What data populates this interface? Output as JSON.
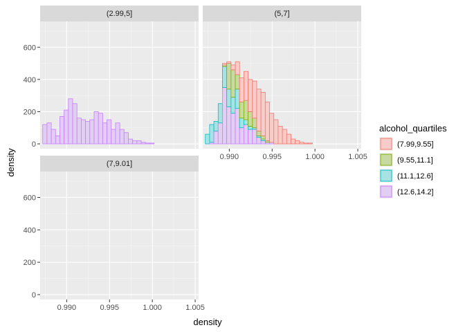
{
  "chart_data": {
    "type": "bar",
    "subtype": "stacked-histogram-faceted",
    "xlabel": "density",
    "ylabel": "density",
    "xlim": [
      0.9869,
      1.0054
    ],
    "ylim": [
      -30,
      760
    ],
    "x_ticks": [
      0.99,
      0.995,
      1.0,
      1.005
    ],
    "x_tick_labels": [
      "0.990",
      "0.995",
      "1.000",
      "1.005"
    ],
    "y_ticks": [
      0,
      200,
      400,
      600
    ],
    "y_tick_labels": [
      "0",
      "200",
      "400",
      "600"
    ],
    "grid": true,
    "legend": {
      "title": "alcohol_quartiles",
      "placement": "right",
      "entries": [
        {
          "label": "(7.99,9.55]",
          "fill": "#f8cdc9",
          "stroke": "#f3766d"
        },
        {
          "label": "(9.55,11.1]",
          "fill": "#c8d9a2",
          "stroke": "#7cae00"
        },
        {
          "label": "(11.1,12.6]",
          "fill": "#a8e2e2",
          "stroke": "#00bfc4"
        },
        {
          "label": "(12.6,14.2]",
          "fill": "#e2cdf3",
          "stroke": "#c77cff"
        }
      ]
    },
    "bin_start": 0.9872,
    "bin_width": 0.0005,
    "facets": [
      {
        "label": "(2.99,5]",
        "stacks": [
          [
            0,
            0,
            0,
            120,
            0,
            50,
            0,
            0,
            0
          ],
          [
            0,
            0,
            0,
            130,
            0,
            140,
            20,
            50,
            0
          ],
          [
            0,
            0,
            0,
            90,
            0,
            150,
            160,
            290,
            0
          ],
          [
            0,
            0,
            0,
            50,
            0,
            100,
            90,
            50,
            70
          ],
          [
            0,
            0,
            0,
            170,
            0,
            0,
            0,
            0,
            0
          ],
          [
            0,
            0,
            0,
            210,
            260,
            0,
            0,
            0,
            0
          ],
          [
            0,
            0,
            0,
            280,
            80,
            0,
            0,
            0,
            0
          ],
          [
            0,
            0,
            0,
            250,
            100,
            0,
            0,
            0,
            0
          ],
          [
            0,
            0,
            0,
            160,
            200,
            0,
            0,
            0,
            0
          ],
          [
            0,
            0,
            0,
            150,
            130,
            0,
            0,
            0,
            0
          ],
          [
            0,
            0,
            0,
            140,
            80,
            0,
            0,
            0,
            0
          ],
          [
            0,
            0,
            0,
            150,
            30,
            0,
            0,
            0,
            0
          ],
          [
            0,
            0,
            0,
            200,
            0,
            0,
            0,
            0,
            0
          ],
          [
            0,
            0,
            0,
            190,
            0,
            0,
            0,
            0,
            0
          ],
          [
            0,
            0,
            0,
            130,
            0,
            0,
            0,
            0,
            0
          ],
          [
            0,
            0,
            0,
            150,
            0,
            0,
            0,
            0,
            0
          ],
          [
            0,
            0,
            0,
            90,
            0,
            0,
            0,
            0,
            0
          ],
          [
            0,
            0,
            0,
            130,
            0,
            0,
            0,
            0,
            0
          ],
          [
            0,
            0,
            0,
            90,
            0,
            0,
            0,
            0,
            0
          ],
          [
            0,
            0,
            0,
            70,
            0,
            0,
            0,
            0,
            0
          ],
          [
            0,
            0,
            0,
            30,
            0,
            0,
            0,
            0,
            0
          ],
          [
            0,
            0,
            0,
            20,
            0,
            0,
            0,
            0,
            0
          ],
          [
            0,
            0,
            0,
            20,
            0,
            0,
            0,
            0,
            0
          ],
          [
            0,
            0,
            0,
            10,
            0,
            0,
            0,
            0,
            0
          ],
          [
            0,
            0,
            0,
            5,
            0,
            0,
            0,
            0,
            0
          ],
          [
            0,
            0,
            0,
            5,
            0,
            0,
            0,
            0,
            0
          ],
          [
            0,
            0,
            0,
            0,
            0,
            0,
            0,
            0,
            0
          ],
          [
            0,
            0,
            0,
            0,
            0,
            0,
            0,
            0,
            0
          ],
          [
            0,
            0,
            0,
            0,
            0,
            0,
            0,
            0,
            0
          ],
          [
            0,
            0,
            0,
            0,
            0,
            0,
            0,
            0,
            0
          ],
          [
            0,
            0,
            0,
            0,
            0,
            0,
            0,
            0,
            0
          ],
          [
            0,
            0,
            0,
            0,
            0,
            0,
            0,
            0,
            0
          ],
          [
            0,
            0,
            0,
            0,
            0,
            0,
            0,
            0,
            0
          ],
          [
            0,
            0,
            0,
            0,
            0,
            0,
            0,
            0,
            0
          ],
          [
            0,
            0,
            0,
            0,
            0,
            0,
            0,
            0,
            0
          ],
          [
            0,
            0,
            0,
            0,
            0,
            0,
            0,
            0,
            0
          ],
          [
            0,
            0,
            0,
            0,
            0,
            0,
            0,
            0,
            0
          ],
          [
            0,
            0,
            0,
            0,
            0,
            0,
            0,
            0,
            0
          ]
        ]
      },
      {
        "label": "(5,7]",
        "stacks": [
          [
            0,
            0,
            60,
            0,
            0,
            0,
            0,
            0,
            0
          ],
          [
            0,
            0,
            110,
            10,
            0,
            0,
            0,
            0,
            0
          ],
          [
            0,
            0,
            60,
            80,
            150,
            0,
            0,
            0,
            0
          ],
          [
            0,
            0,
            120,
            130,
            280,
            0,
            0,
            0,
            0
          ],
          [
            10,
            10,
            130,
            350,
            40,
            0,
            0,
            0,
            0
          ],
          [
            10,
            160,
            110,
            230,
            0,
            0,
            0,
            0,
            0
          ],
          [
            30,
            170,
            100,
            190,
            0,
            0,
            0,
            0,
            0
          ],
          [
            80,
            90,
            120,
            220,
            0,
            0,
            0,
            0,
            0
          ],
          [
            150,
            100,
            60,
            100,
            0,
            0,
            0,
            0,
            0
          ],
          [
            180,
            120,
            30,
            120,
            0,
            0,
            0,
            0,
            0
          ],
          [
            200,
            90,
            20,
            90,
            0,
            0,
            0,
            0,
            0
          ],
          [
            230,
            60,
            10,
            90,
            0,
            0,
            0,
            0,
            0
          ],
          [
            260,
            30,
            10,
            40,
            0,
            0,
            0,
            0,
            0
          ],
          [
            270,
            20,
            10,
            20,
            0,
            0,
            0,
            0,
            0
          ],
          [
            240,
            10,
            0,
            10,
            0,
            0,
            0,
            0,
            0
          ],
          [
            180,
            0,
            0,
            10,
            0,
            0,
            0,
            0,
            0
          ],
          [
            150,
            0,
            0,
            0,
            0,
            0,
            0,
            0,
            0
          ],
          [
            110,
            0,
            0,
            0,
            0,
            0,
            0,
            0,
            0
          ],
          [
            90,
            0,
            0,
            0,
            0,
            0,
            0,
            0,
            0
          ],
          [
            60,
            0,
            0,
            0,
            0,
            0,
            0,
            0,
            0
          ],
          [
            30,
            0,
            0,
            0,
            0,
            0,
            0,
            0,
            0
          ],
          [
            20,
            0,
            0,
            0,
            0,
            0,
            0,
            0,
            0
          ],
          [
            10,
            0,
            0,
            0,
            0,
            0,
            0,
            0,
            0
          ],
          [
            5,
            0,
            0,
            0,
            0,
            0,
            0,
            0,
            0
          ],
          [
            5,
            0,
            0,
            0,
            0,
            0,
            0,
            0,
            0
          ],
          [
            0,
            0,
            0,
            0,
            0,
            0,
            0,
            0,
            0
          ]
        ]
      },
      {
        "label": "(7,9.01]",
        "stacks": [
          [
            0,
            0,
            0,
            0,
            0,
            0,
            0,
            0,
            0
          ],
          [
            0,
            0,
            0,
            0,
            0,
            0,
            0,
            0,
            0
          ],
          [
            0,
            0,
            0,
            0,
            0,
            0,
            0,
            0,
            0
          ],
          [
            0,
            0,
            0,
            0,
            0,
            0,
            0,
            0,
            0
          ],
          [
            0,
            0,
            0,
            0,
            0,
            0,
            0,
            0,
            0
          ],
          [
            0,
            0,
            0,
            0,
            0,
            0,
            0,
            0,
            0
          ],
          [
            0,
            0,
            0,
            0,
            0,
            0,
            0,
            0,
            0
          ],
          [
            0,
            0,
            0,
            0,
            0,
            0,
            0,
            0,
            0
          ],
          [
            0,
            0,
            0,
            0,
            0,
            0,
            0,
            0,
            0
          ],
          [
            0,
            0,
            0,
            0,
            0,
            0,
            0,
            0,
            0
          ],
          [
            0,
            0,
            0,
            0,
            0,
            0,
            0,
            0,
            0
          ],
          [
            0,
            0,
            0,
            0,
            0,
            0,
            0,
            0,
            0
          ],
          [
            0,
            0,
            0,
            0,
            0,
            0,
            0,
            0,
            0
          ],
          [
            0,
            0,
            0,
            0,
            0,
            0,
            0,
            0,
            0
          ],
          [
            0,
            0,
            0,
            0,
            0,
            0,
            0,
            0,
            0
          ],
          [
            0,
            0,
            0,
            0,
            0,
            0,
            0,
            0,
            0
          ],
          [
            0,
            0,
            0,
            0,
            0,
            0,
            0,
            0,
            0
          ],
          [
            0,
            0,
            0,
            0,
            0,
            0,
            0,
            0,
            0
          ],
          [
            0,
            0,
            0,
            0,
            0,
            0,
            0,
            0,
            0
          ],
          [
            0,
            0,
            0,
            0,
            0,
            0,
            0,
            0,
            0
          ],
          [
            0,
            0,
            0,
            0,
            0,
            0,
            0,
            0,
            0
          ],
          [
            0,
            0,
            0,
            0,
            0,
            0,
            0,
            0,
            0
          ],
          [
            0,
            0,
            0,
            0,
            0,
            0,
            0,
            0,
            0
          ],
          [
            0,
            0,
            0,
            0,
            0,
            0,
            0,
            0,
            0
          ],
          [
            0,
            0,
            0,
            0,
            0,
            0,
            0,
            0,
            0
          ],
          [
            0,
            0,
            0,
            0,
            0,
            0,
            0,
            0,
            0
          ]
        ]
      }
    ]
  }
}
